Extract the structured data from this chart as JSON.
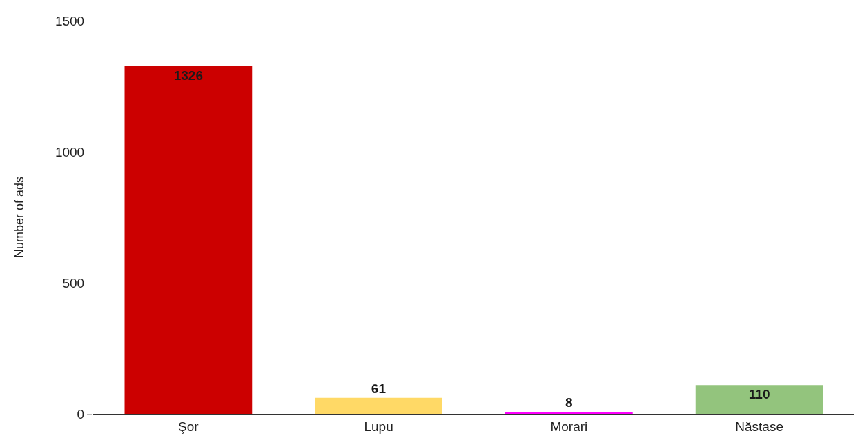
{
  "chart_data": {
    "type": "bar",
    "ylabel": "Number of ads",
    "categories": [
      "Şor",
      "Lupu",
      "Morari",
      "Năstase"
    ],
    "values": [
      1326,
      61,
      8,
      110
    ],
    "colors": [
      "#cc0000",
      "#ffd966",
      "#ff00ff",
      "#93c47d"
    ],
    "ylim": [
      0,
      1500
    ],
    "yticks": [
      0,
      500,
      1000,
      1500
    ],
    "grid": "y",
    "data_labels": true
  }
}
